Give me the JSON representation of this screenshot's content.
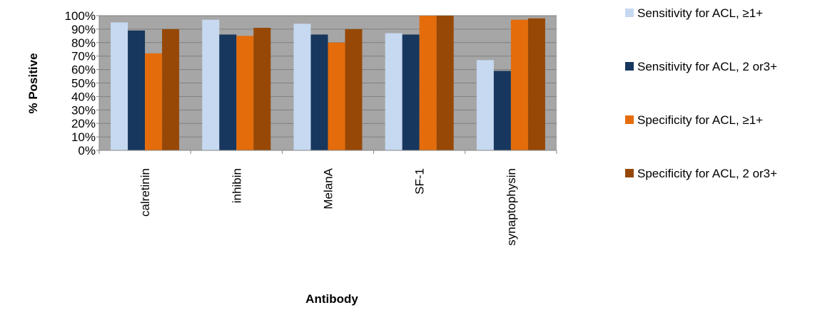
{
  "chart_data": {
    "type": "bar",
    "title": "",
    "xlabel": "Antibody",
    "ylabel": "% Positive",
    "ylim": [
      0,
      100
    ],
    "yticks": [
      "0%",
      "10%",
      "20%",
      "30%",
      "40%",
      "50%",
      "60%",
      "70%",
      "80%",
      "90%",
      "100%"
    ],
    "categories": [
      "calretinin",
      "inhibin",
      "MelanA",
      "SF-1",
      "synaptophysin"
    ],
    "series": [
      {
        "name": "Sensitivity for ACL, ≥1+",
        "color": "#c6d9f1",
        "values": [
          95,
          97,
          94,
          87,
          67
        ]
      },
      {
        "name": "Sensitivity for ACL, 2 or3+",
        "color": "#17375e",
        "values": [
          89,
          86,
          86,
          86,
          59
        ]
      },
      {
        "name": "Specificity for ACL, ≥1+",
        "color": "#e46c0a",
        "values": [
          72,
          85,
          80,
          100,
          97
        ]
      },
      {
        "name": "Specificity for ACL, 2 or3+",
        "color": "#974806",
        "values": [
          90,
          91,
          90,
          100,
          98
        ]
      }
    ],
    "plot_background": "#a6a6a6",
    "grid": true,
    "legend_position": "right"
  }
}
